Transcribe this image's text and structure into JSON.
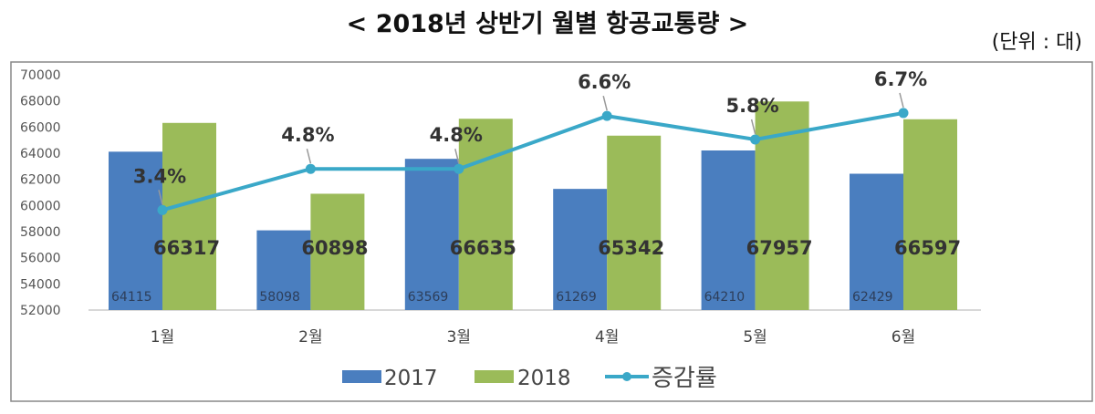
{
  "title": "< 2018년 상반기 월별 항공교통량 >",
  "unit": "(단위 : 대)",
  "chart_data": {
    "type": "bar",
    "categories": [
      "1월",
      "2월",
      "3월",
      "4월",
      "5월",
      "6월"
    ],
    "ylim": [
      52000,
      70000
    ],
    "yticks": [
      52000,
      54000,
      56000,
      58000,
      60000,
      62000,
      64000,
      66000,
      68000,
      70000
    ],
    "grid": false,
    "legend": "bottom",
    "series": [
      {
        "name": "2017",
        "type": "bar",
        "color": "#4a7ebf",
        "values": [
          64115,
          58098,
          63569,
          61269,
          64210,
          62429
        ]
      },
      {
        "name": "2018",
        "type": "bar",
        "color": "#9bbb59",
        "values": [
          66317,
          60898,
          66635,
          65342,
          67957,
          66597
        ]
      },
      {
        "name": "증감률",
        "type": "line",
        "axis": "secondary",
        "color": "#3aa8c8",
        "values": [
          3.4,
          4.8,
          4.8,
          6.6,
          5.8,
          6.7
        ],
        "labels": [
          "3.4%",
          "4.8%",
          "4.8%",
          "6.6%",
          "5.8%",
          "6.7%"
        ]
      }
    ],
    "y2lim": [
      0,
      8
    ]
  }
}
